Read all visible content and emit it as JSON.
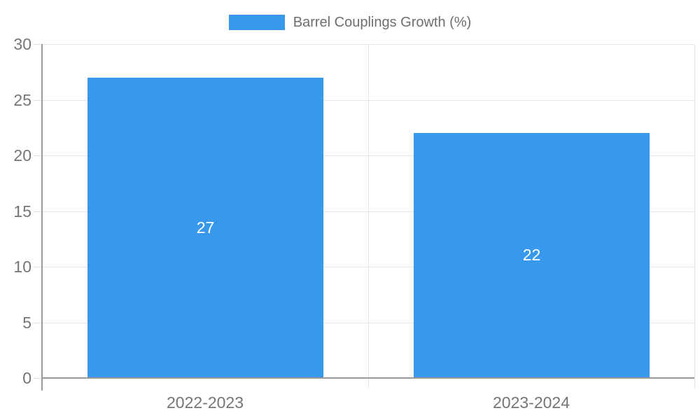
{
  "legend": {
    "label": "Barrel Couplings Growth (%)"
  },
  "colors": {
    "bar": "#3898ec",
    "grid": "#e6e6e6",
    "axis": "#999999",
    "tick_text": "#757575",
    "legend_text": "#6e6e6e",
    "bar_label_text": "#ffffff"
  },
  "chart_data": {
    "type": "bar",
    "title": "Barrel Couplings Growth (%)",
    "categories": [
      "2022-2023",
      "2023-2024"
    ],
    "values": [
      27,
      22
    ],
    "data_labels": [
      "27",
      "22"
    ],
    "xlabel": "",
    "ylabel": "",
    "ylim": [
      0,
      30
    ],
    "yticks": [
      0,
      5,
      10,
      15,
      20,
      25,
      30
    ],
    "grid": true,
    "legend_position": "top-center",
    "legend_entries": [
      "Barrel Couplings Growth (%)"
    ]
  }
}
